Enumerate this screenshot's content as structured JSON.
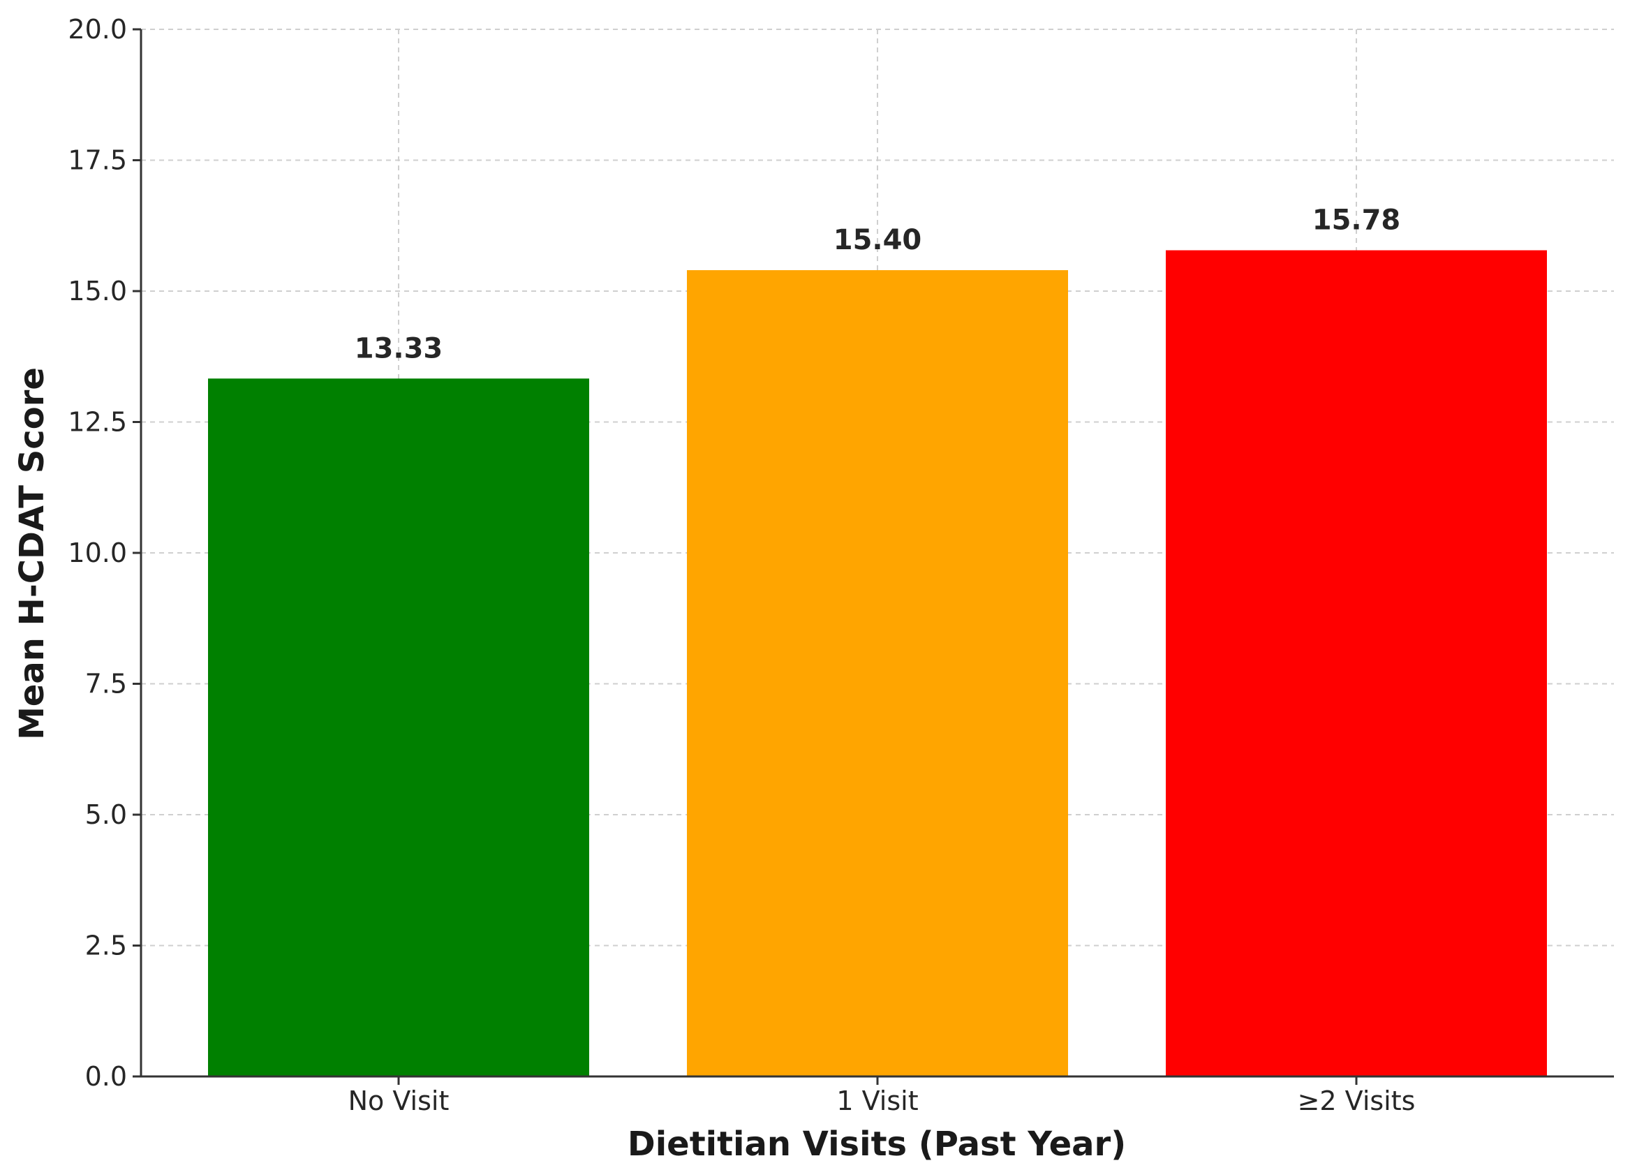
{
  "chart_data": {
    "type": "bar",
    "categories": [
      "No Visit",
      "1 Visit",
      "≥2 Visits"
    ],
    "values": [
      13.33,
      15.4,
      15.78
    ],
    "data_labels": [
      "13.33",
      "15.40",
      "15.78"
    ],
    "colors": [
      "#008000",
      "#FFA500",
      "#FF0000"
    ],
    "xlabel": "Dietitian Visits (Past Year)",
    "ylabel": "Mean H-CDAT Score",
    "ylim": [
      0,
      20
    ],
    "yticks": [
      0.0,
      2.5,
      5.0,
      7.5,
      10.0,
      12.5,
      15.0,
      17.5,
      20.0
    ],
    "ytick_labels": [
      "0.0",
      "2.5",
      "5.0",
      "7.5",
      "10.0",
      "12.5",
      "15.0",
      "17.5",
      "20.0"
    ],
    "grid": true,
    "legend": false
  }
}
